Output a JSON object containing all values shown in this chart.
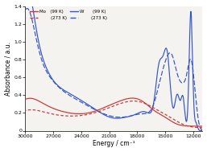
{
  "xlabel": "Energy / cm⁻¹",
  "ylabel": "Absorbance / a.u.",
  "xlim": [
    30000,
    11000
  ],
  "ylim": [
    0,
    1.4
  ],
  "yticks": [
    0.0,
    0.2,
    0.4,
    0.6,
    0.8,
    1.0,
    1.2,
    1.4
  ],
  "xticks": [
    30000,
    27000,
    24000,
    21000,
    18000,
    15000,
    12000
  ],
  "red": "#cc3333",
  "blue": "#3355cc",
  "bg_color": "#f5f3f0"
}
